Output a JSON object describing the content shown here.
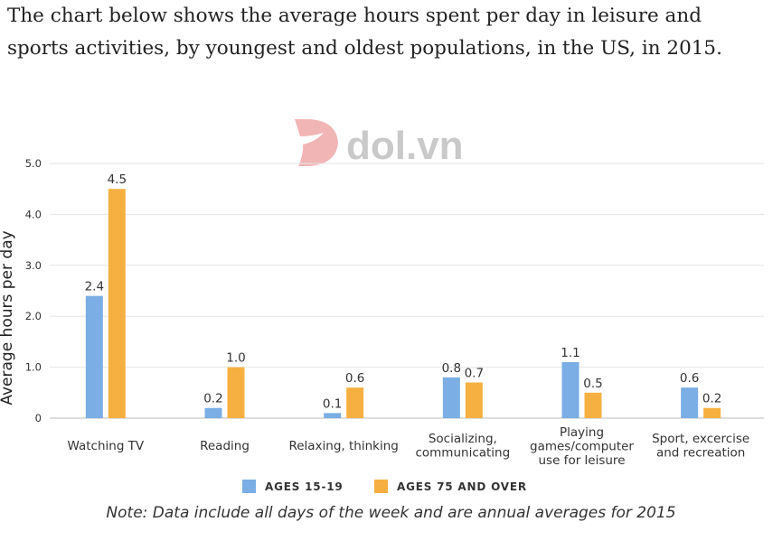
{
  "prompt": {
    "line1": "The chart below shows the average hours spent per day in leisure and",
    "line2": "sports activities, by youngest and oldest populations, in the US, in 2015."
  },
  "watermark": {
    "text": "dol.vn",
    "icon": "dol-logo-icon"
  },
  "note": "Note: Data include all days of the week and are annual averages for 2015",
  "colors": {
    "series1": "#7aaee4",
    "series2": "#f6b041",
    "grid": "#e6e6e6",
    "axis_text": "#333333"
  },
  "chart_data": {
    "type": "bar",
    "title": "",
    "xlabel": "",
    "ylabel": "Average hours per day",
    "ylim": [
      0,
      5
    ],
    "yticks": [
      "0",
      "1.0",
      "2.0",
      "3.0",
      "4.0",
      "5.0"
    ],
    "grid": true,
    "legend_position": "bottom",
    "categories": [
      [
        "Watching TV"
      ],
      [
        "Reading"
      ],
      [
        "Relaxing, thinking"
      ],
      [
        "Socializing,",
        "communicating"
      ],
      [
        "Playing",
        "games/computer",
        "use for leisure"
      ],
      [
        "Sport, excercise",
        "and recreation"
      ]
    ],
    "series": [
      {
        "name": "AGES 15-19",
        "values": [
          2.4,
          0.2,
          0.1,
          0.8,
          1.1,
          0.6
        ],
        "labels": [
          "2.4",
          "0.2",
          "0.1",
          "0.8",
          "1.1",
          "0.6"
        ]
      },
      {
        "name": "AGES 75 AND OVER",
        "values": [
          4.5,
          1.0,
          0.6,
          0.7,
          0.5,
          0.2
        ],
        "labels": [
          "4.5",
          "1.0",
          "0.6",
          "0.7",
          "0.5",
          "0.2"
        ]
      }
    ]
  }
}
